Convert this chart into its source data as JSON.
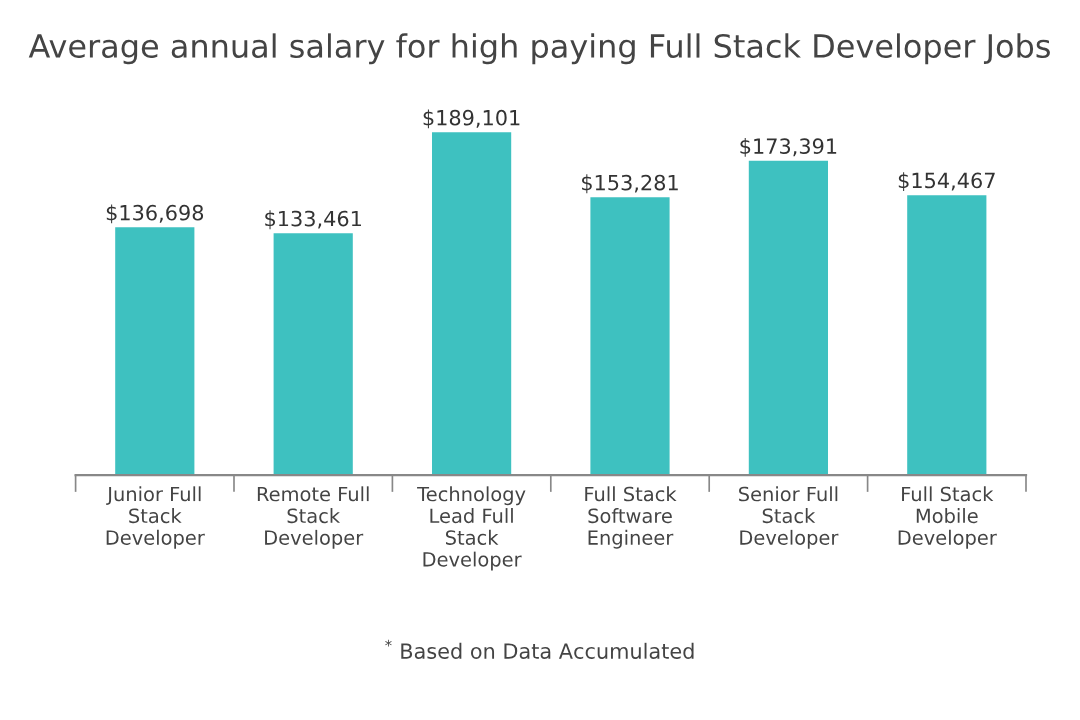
{
  "chart_data": {
    "type": "bar",
    "title": "Average annual salary for high paying Full Stack Developer Jobs",
    "categories": [
      "Junior Full\nStack\nDeveloper",
      "Remote Full\nStack\nDeveloper",
      "Technology\nLead Full\nStack\nDeveloper",
      "Full Stack\nSoftware\nEngineer",
      "Senior Full\nStack\nDeveloper",
      "Full Stack\nMobile\nDeveloper"
    ],
    "values": [
      136698,
      133461,
      189101,
      153281,
      173391,
      154467
    ],
    "value_labels": [
      "$136,698",
      "$133,461",
      "$189,101",
      "$153,281",
      "$173,391",
      "$154,467"
    ],
    "color": "#3ec1c0",
    "tick_labels": "x",
    "grid": false,
    "legend": false,
    "annotations": [
      "$^{*}$ Based on Data Accumulated"
    ]
  }
}
